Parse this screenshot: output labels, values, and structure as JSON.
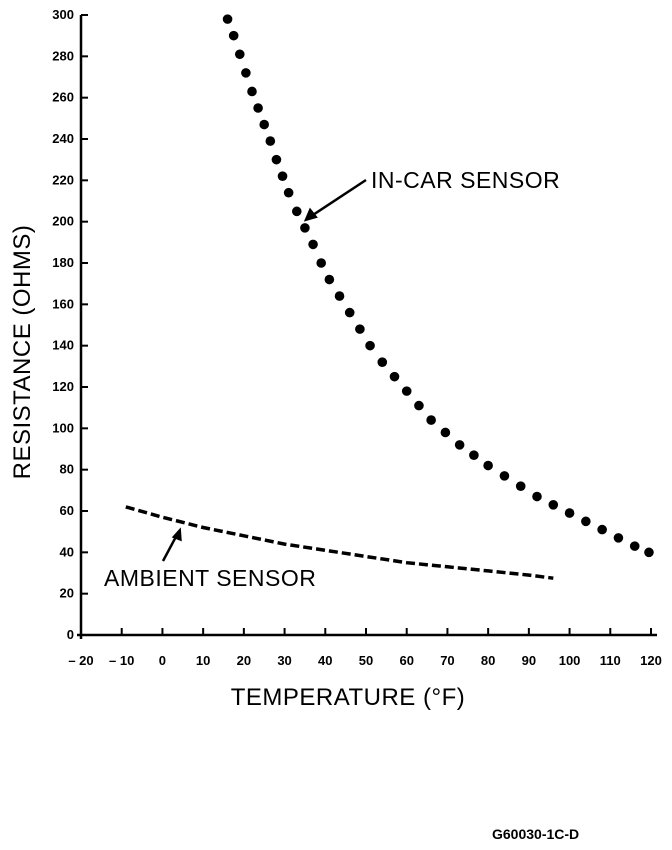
{
  "chart_data": {
    "type": "line",
    "xlabel": "TEMPERATURE (°F)",
    "ylabel": "RESISTANCE (OHMS)",
    "xlim": [
      -20,
      120
    ],
    "ylim": [
      0,
      300
    ],
    "xticks": [
      -20,
      -10,
      0,
      10,
      20,
      30,
      40,
      50,
      60,
      70,
      80,
      90,
      100,
      110,
      120
    ],
    "xtick_labels": [
      "– 20",
      "– 10",
      "0",
      "10",
      "20",
      "30",
      "40",
      "50",
      "60",
      "70",
      "80",
      "90",
      "100",
      "110",
      "120"
    ],
    "yticks": [
      0,
      20,
      40,
      60,
      80,
      100,
      120,
      140,
      160,
      180,
      200,
      220,
      240,
      260,
      280,
      300
    ],
    "grid": false,
    "series": [
      {
        "name": "IN-CAR SENSOR",
        "style": "dotted",
        "x": [
          16,
          17.5,
          19,
          20.5,
          22,
          23.5,
          25,
          26.5,
          28,
          29.5,
          31,
          33,
          35,
          37,
          39,
          41,
          43.5,
          46,
          48.5,
          51,
          54,
          57,
          60,
          63,
          66,
          69.5,
          73,
          76.5,
          80,
          84,
          88,
          92,
          96,
          100,
          104,
          108,
          112,
          116,
          119.5
        ],
        "y": [
          298,
          290,
          281,
          272,
          263,
          255,
          247,
          239,
          230,
          222,
          214,
          205,
          197,
          189,
          180,
          172,
          164,
          156,
          148,
          140,
          132,
          125,
          118,
          111,
          104,
          98,
          92,
          87,
          82,
          77,
          72,
          67,
          63,
          59,
          55,
          51,
          47,
          43,
          40
        ]
      },
      {
        "name": "AMBIENT SENSOR",
        "style": "dashed",
        "x": [
          -9,
          0,
          10,
          20,
          30,
          40,
          50,
          60,
          70,
          80,
          90,
          96
        ],
        "y": [
          62,
          57,
          52,
          48,
          44,
          41,
          38,
          35,
          33,
          31,
          29,
          27.5
        ]
      }
    ],
    "annotations": [
      {
        "text": "IN-CAR SENSOR",
        "points_to": [
          34,
          200
        ]
      },
      {
        "text": "AMBIENT SENSOR",
        "points_to": [
          5,
          55
        ]
      }
    ]
  },
  "figure_code": "G60030-1C-D"
}
